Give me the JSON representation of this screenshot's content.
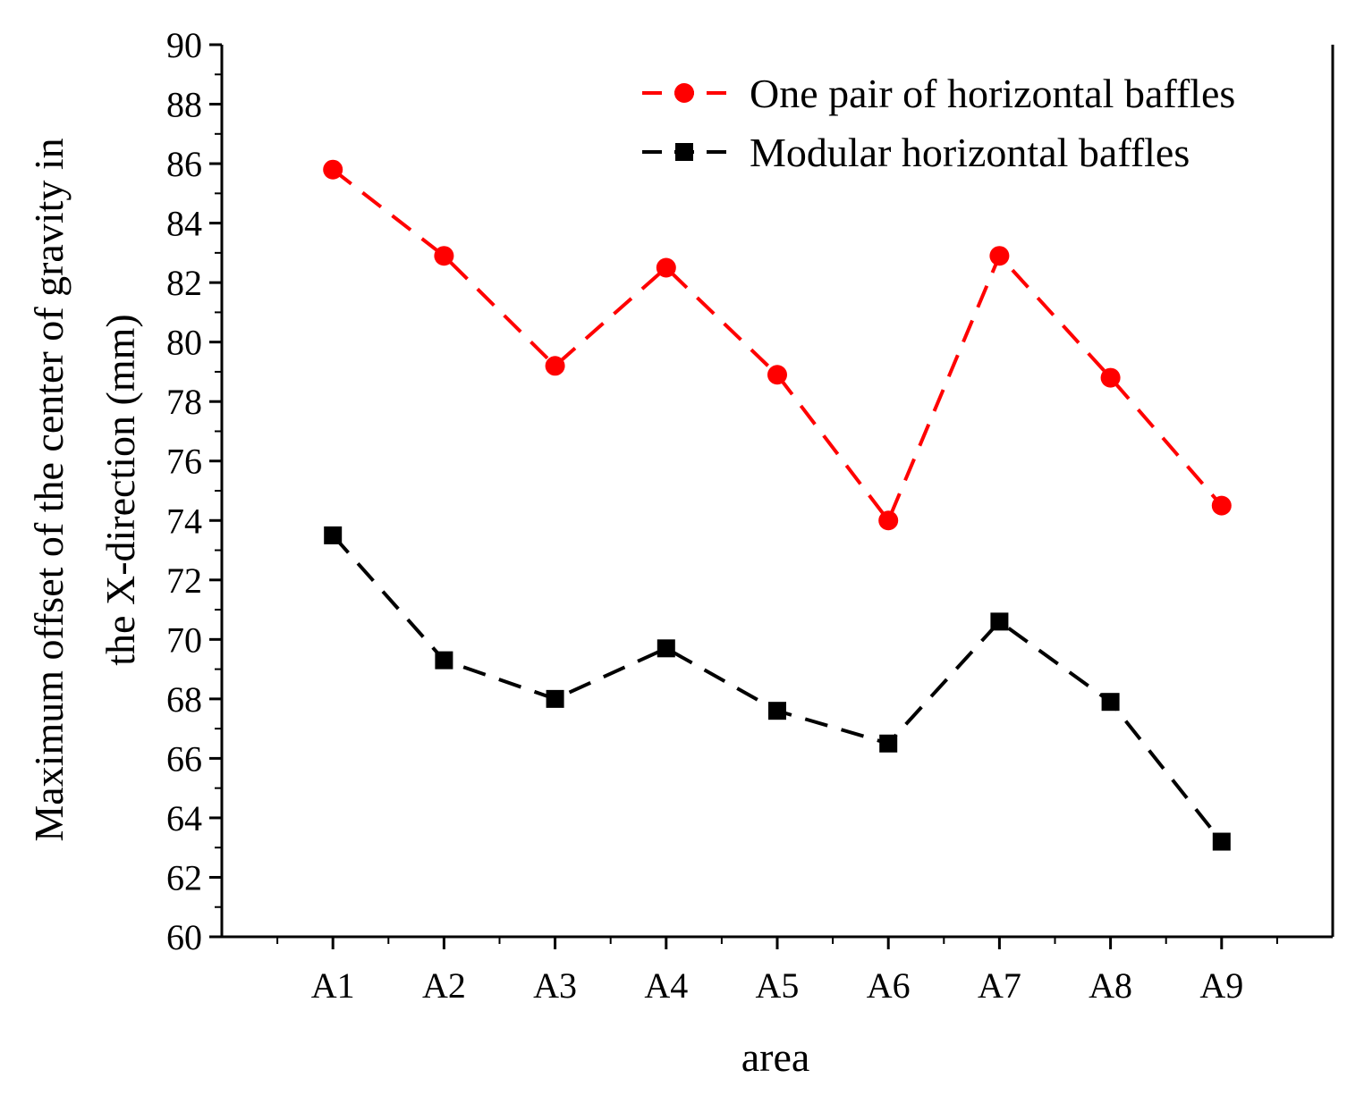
{
  "chart_data": {
    "type": "line",
    "title": "",
    "xlabel": "area",
    "ylabel_line1": "Maximum offset of the center of gravity in",
    "ylabel_line2": "the X-direction (mm)",
    "categories": [
      "A1",
      "A2",
      "A3",
      "A4",
      "A5",
      "A6",
      "A7",
      "A8",
      "A9"
    ],
    "xlim": [
      0,
      10
    ],
    "ylim": [
      60,
      90
    ],
    "yticks": [
      60,
      62,
      64,
      66,
      68,
      70,
      72,
      74,
      76,
      78,
      80,
      82,
      84,
      86,
      88,
      90
    ],
    "grid": false,
    "legend_position": "top-right",
    "series": [
      {
        "name": "One pair of horizontal baffles",
        "color": "#ff0000",
        "marker": "circle",
        "line_style": "dashed",
        "values": [
          85.8,
          82.9,
          79.2,
          82.5,
          78.9,
          74.0,
          82.9,
          78.8,
          74.5
        ]
      },
      {
        "name": "Modular horizontal baffles",
        "color": "#000000",
        "marker": "square",
        "line_style": "dashed",
        "values": [
          73.5,
          69.3,
          68.0,
          69.7,
          67.6,
          66.5,
          70.6,
          67.9,
          63.2
        ]
      }
    ]
  }
}
